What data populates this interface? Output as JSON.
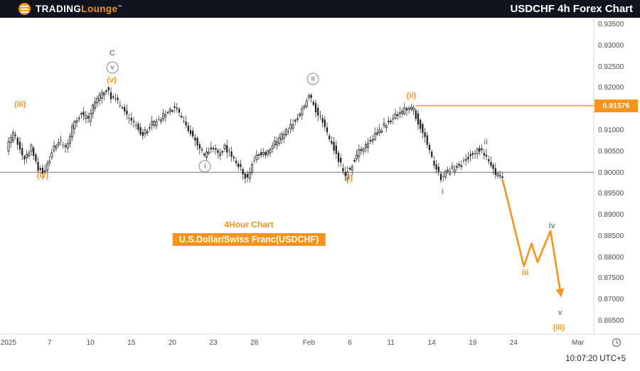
{
  "header": {
    "brand": {
      "word1": "TRADING",
      "word2": "Lounge",
      "trademark": "™"
    },
    "title": "USDCHF 4h Forex Chart"
  },
  "captions": {
    "timeframe": "4Hour Chart",
    "symbol_banner": "U.S.Dollar/Swiss Franc(USDCHF)"
  },
  "footer": {
    "timestamp": "10:07:20 UTC+5"
  },
  "colors": {
    "accent_orange": "#f7941e",
    "annotation_gray": "#7e8b96",
    "candle": "#1c1c1c",
    "support_line": "#9b9b9b",
    "header_bg": "#11141f",
    "axis_text": "#4a4a4a"
  },
  "chart_data": {
    "type": "candlestick",
    "title": "USDCHF 4h Forex Chart",
    "symbol": "U.S.Dollar/Swiss Franc(USDCHF)",
    "timeframe": "4Hour",
    "y_axis": {
      "labels": [
        "0.93500",
        "0.93000",
        "0.92500",
        "0.92000",
        "0.91500",
        "0.91000",
        "0.90500",
        "0.90000",
        "0.89500",
        "0.89000",
        "0.88500",
        "0.88000",
        "0.87500",
        "0.87000",
        "0.86500"
      ],
      "values": [
        0.935,
        0.93,
        0.925,
        0.92,
        0.915,
        0.91,
        0.905,
        0.9,
        0.895,
        0.89,
        0.885,
        0.88,
        0.875,
        0.87,
        0.865
      ]
    },
    "x_axis": {
      "ticks": [
        {
          "label": "2025",
          "day": 0
        },
        {
          "label": "7",
          "day": 3
        },
        {
          "label": "10",
          "day": 6
        },
        {
          "label": "15",
          "day": 9
        },
        {
          "label": "20",
          "day": 12
        },
        {
          "label": "23",
          "day": 15
        },
        {
          "label": "28",
          "day": 18
        },
        {
          "label": "Feb",
          "day": 22
        },
        {
          "label": "6",
          "day": 25
        },
        {
          "label": "11",
          "day": 28
        },
        {
          "label": "14",
          "day": 31
        },
        {
          "label": "19",
          "day": 34
        },
        {
          "label": "24",
          "day": 37
        },
        {
          "label": "Mar",
          "day": 41.7
        }
      ]
    },
    "support_line": {
      "price": 0.9
    },
    "resistance_line": {
      "price": 0.91576,
      "start_day": 29.8
    },
    "price_label": {
      "text": "0.91576",
      "value": 0.91576
    },
    "candles": {
      "per_day": 6,
      "count": 218,
      "price_path_anchors": [
        [
          0,
          0.9055
        ],
        [
          3,
          0.9092
        ],
        [
          8,
          0.903
        ],
        [
          11,
          0.9058
        ],
        [
          14,
          0.9008
        ],
        [
          17,
          0.8999
        ],
        [
          20,
          0.9048
        ],
        [
          23,
          0.9075
        ],
        [
          26,
          0.9058
        ],
        [
          29,
          0.9105
        ],
        [
          33,
          0.914
        ],
        [
          36,
          0.9122
        ],
        [
          38,
          0.9158
        ],
        [
          42,
          0.9188
        ],
        [
          44,
          0.9197
        ],
        [
          46,
          0.9178
        ],
        [
          49,
          0.9165
        ],
        [
          52,
          0.914
        ],
        [
          55,
          0.9118
        ],
        [
          58,
          0.9103
        ],
        [
          60,
          0.9088
        ],
        [
          63,
          0.911
        ],
        [
          67,
          0.9123
        ],
        [
          70,
          0.9138
        ],
        [
          74,
          0.9153
        ],
        [
          77,
          0.9128
        ],
        [
          80,
          0.9103
        ],
        [
          83,
          0.9075
        ],
        [
          87,
          0.904
        ],
        [
          90,
          0.906
        ],
        [
          93,
          0.9045
        ],
        [
          96,
          0.9058
        ],
        [
          99,
          0.9038
        ],
        [
          102,
          0.9015
        ],
        [
          106,
          0.8982
        ],
        [
          108,
          0.9025
        ],
        [
          111,
          0.9048
        ],
        [
          114,
          0.9038
        ],
        [
          117,
          0.9063
        ],
        [
          121,
          0.9085
        ],
        [
          124,
          0.9103
        ],
        [
          127,
          0.912
        ],
        [
          130,
          0.915
        ],
        [
          133,
          0.9184
        ],
        [
          135,
          0.9158
        ],
        [
          137,
          0.9138
        ],
        [
          139,
          0.9118
        ],
        [
          141,
          0.909
        ],
        [
          144,
          0.9058
        ],
        [
          146,
          0.9028
        ],
        [
          149,
          0.8993
        ],
        [
          152,
          0.902
        ],
        [
          155,
          0.9048
        ],
        [
          158,
          0.9063
        ],
        [
          161,
          0.9083
        ],
        [
          164,
          0.91
        ],
        [
          168,
          0.9118
        ],
        [
          171,
          0.9133
        ],
        [
          174,
          0.9144
        ],
        [
          177,
          0.9156
        ],
        [
          179,
          0.9148
        ],
        [
          181,
          0.9118
        ],
        [
          184,
          0.9088
        ],
        [
          186,
          0.905
        ],
        [
          188,
          0.9018
        ],
        [
          191,
          0.8988
        ],
        [
          193,
          0.9
        ],
        [
          196,
          0.9008
        ],
        [
          199,
          0.9018
        ],
        [
          202,
          0.9033
        ],
        [
          205,
          0.9046
        ],
        [
          208,
          0.9054
        ],
        [
          211,
          0.9038
        ],
        [
          213,
          0.9013
        ],
        [
          215,
          0.8995
        ],
        [
          217,
          0.8988
        ]
      ]
    },
    "projection": {
      "arrow": true,
      "points": [
        [
          36.2,
          0.8981
        ],
        [
          37.75,
          0.8778
        ],
        [
          38.3,
          0.8832
        ],
        [
          38.75,
          0.8788
        ],
        [
          39.7,
          0.8862
        ],
        [
          40.45,
          0.8712
        ]
      ]
    },
    "annotations": [
      {
        "text": "(iii)",
        "style": "orange",
        "circled": false,
        "day": 0.85,
        "price": 0.916
      },
      {
        "text": "(iv)",
        "style": "orange",
        "circled": false,
        "day": 2.5,
        "price": 0.8992
      },
      {
        "text": "C",
        "style": "gray",
        "circled": false,
        "day": 7.6,
        "price": 0.9281
      },
      {
        "text": "v",
        "style": "gray",
        "circled": true,
        "day": 7.6,
        "price": 0.9247
      },
      {
        "text": "(v)",
        "style": "orange",
        "circled": false,
        "day": 7.55,
        "price": 0.9217
      },
      {
        "text": "i",
        "style": "gray",
        "circled": true,
        "day": 14.4,
        "price": 0.9014
      },
      {
        "text": "ii",
        "style": "gray",
        "circled": true,
        "day": 22.3,
        "price": 0.922
      },
      {
        "text": "(i)",
        "style": "orange",
        "circled": false,
        "day": 24.95,
        "price": 0.8986
      },
      {
        "text": "(ii)",
        "style": "orange",
        "circled": false,
        "day": 29.5,
        "price": 0.9181
      },
      {
        "text": "i",
        "style": "gray",
        "circled": false,
        "day": 31.8,
        "price": 0.8954
      },
      {
        "text": "ii",
        "style": "gray",
        "circled": false,
        "day": 34.95,
        "price": 0.9071
      },
      {
        "text": "iii",
        "style": "orange",
        "circled": false,
        "day": 37.85,
        "price": 0.8763
      },
      {
        "text": "iv",
        "style": "gray",
        "circled": false,
        "day": 39.8,
        "price": 0.8873
      },
      {
        "text": "v",
        "style": "gray",
        "circled": false,
        "day": 40.4,
        "price": 0.8668
      },
      {
        "text": "(iii)",
        "style": "orange",
        "circled": false,
        "day": 40.3,
        "price": 0.8634
      }
    ]
  }
}
